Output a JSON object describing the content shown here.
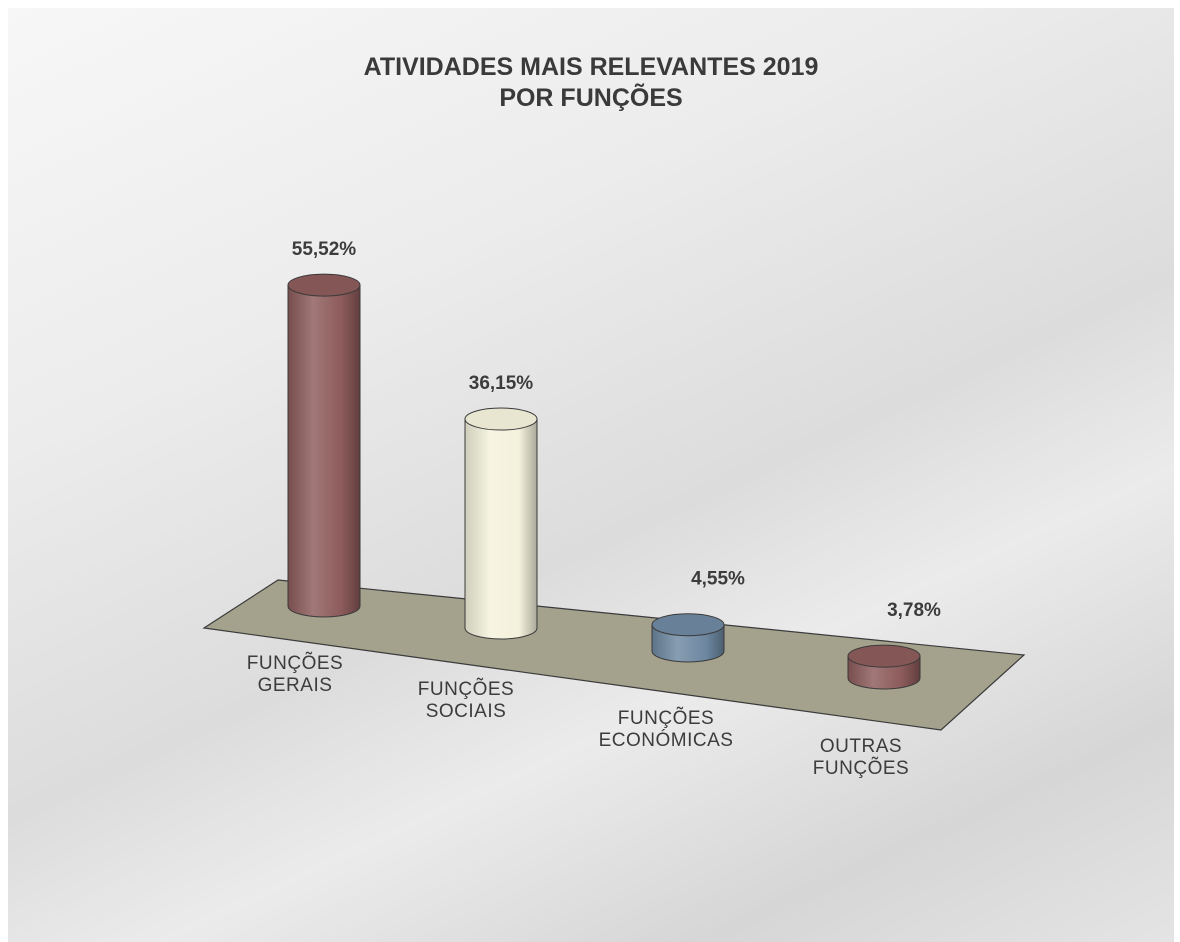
{
  "chart_data": {
    "type": "bar",
    "title": [
      "ATIVIDADES MAIS RELEVANTES 2019",
      "POR FUNÇÕES"
    ],
    "categories": [
      [
        "FUNÇÕES",
        "GERAIS"
      ],
      [
        "FUNÇÕES",
        "SOCIAIS"
      ],
      [
        "FUNÇÕES",
        "ECONÓMICAS"
      ],
      [
        "OUTRAS",
        "FUNÇÕES"
      ]
    ],
    "values": [
      55.52,
      36.15,
      4.55,
      3.78
    ],
    "value_labels": [
      "55,52%",
      "36,15%",
      "4,55%",
      "3,78%"
    ],
    "unit": "%",
    "colors": [
      "#8c5a5a",
      "#f4f2dc",
      "#6d87a0",
      "#8c5a5a"
    ],
    "style": "3d-cylinder",
    "grid": false,
    "legend": "none"
  }
}
